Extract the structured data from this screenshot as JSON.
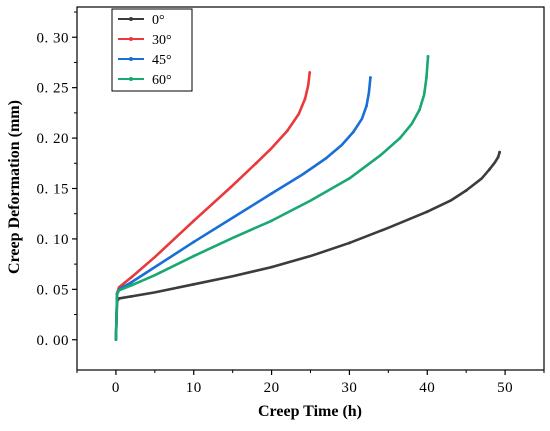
{
  "chart_data": {
    "type": "line",
    "title": "",
    "xlabel": "Creep Time (h)",
    "ylabel": "Creep Deformation (mm)",
    "xlim": [
      -5,
      55
    ],
    "ylim": [
      -0.03,
      0.33
    ],
    "x_ticks": [
      "0",
      "10",
      "20",
      "30",
      "40",
      "50"
    ],
    "y_ticks": [
      "0. 00",
      "0. 05",
      "0. 10",
      "0. 15",
      "0. 20",
      "0. 25",
      "0. 30"
    ],
    "grid": false,
    "legend_position": "top-left",
    "series": [
      {
        "name": "0°",
        "color": "#3c3c3c",
        "points": [
          [
            0,
            0.0
          ],
          [
            0.15,
            0.038
          ],
          [
            0.4,
            0.041
          ],
          [
            2,
            0.043
          ],
          [
            5,
            0.047
          ],
          [
            10,
            0.055
          ],
          [
            15,
            0.063
          ],
          [
            20,
            0.072
          ],
          [
            25,
            0.083
          ],
          [
            30,
            0.096
          ],
          [
            35,
            0.111
          ],
          [
            40,
            0.127
          ],
          [
            43,
            0.138
          ],
          [
            45,
            0.148
          ],
          [
            47,
            0.16
          ],
          [
            48,
            0.169
          ],
          [
            48.7,
            0.176
          ],
          [
            49.1,
            0.181
          ],
          [
            49.3,
            0.186
          ]
        ]
      },
      {
        "name": "30°",
        "color": "#e8393c",
        "points": [
          [
            0,
            0.0
          ],
          [
            0.15,
            0.046
          ],
          [
            0.4,
            0.052
          ],
          [
            2,
            0.062
          ],
          [
            5,
            0.082
          ],
          [
            10,
            0.118
          ],
          [
            15,
            0.153
          ],
          [
            18,
            0.175
          ],
          [
            20,
            0.19
          ],
          [
            22,
            0.207
          ],
          [
            23.5,
            0.224
          ],
          [
            24.3,
            0.239
          ],
          [
            24.7,
            0.252
          ],
          [
            24.9,
            0.265
          ]
        ]
      },
      {
        "name": "45°",
        "color": "#1a6fd6",
        "points": [
          [
            0,
            0.0
          ],
          [
            0.15,
            0.045
          ],
          [
            0.4,
            0.05
          ],
          [
            2,
            0.057
          ],
          [
            5,
            0.072
          ],
          [
            10,
            0.097
          ],
          [
            15,
            0.121
          ],
          [
            20,
            0.145
          ],
          [
            24,
            0.164
          ],
          [
            27,
            0.18
          ],
          [
            29,
            0.193
          ],
          [
            30.5,
            0.206
          ],
          [
            31.6,
            0.219
          ],
          [
            32.2,
            0.232
          ],
          [
            32.5,
            0.245
          ],
          [
            32.7,
            0.26
          ]
        ]
      },
      {
        "name": "60°",
        "color": "#18a870",
        "points": [
          [
            0,
            0.0
          ],
          [
            0.15,
            0.045
          ],
          [
            0.4,
            0.049
          ],
          [
            2,
            0.054
          ],
          [
            5,
            0.064
          ],
          [
            10,
            0.083
          ],
          [
            15,
            0.101
          ],
          [
            20,
            0.118
          ],
          [
            25,
            0.138
          ],
          [
            30,
            0.16
          ],
          [
            34,
            0.183
          ],
          [
            36.5,
            0.2
          ],
          [
            38,
            0.214
          ],
          [
            39,
            0.228
          ],
          [
            39.6,
            0.243
          ],
          [
            39.9,
            0.26
          ],
          [
            40.1,
            0.281
          ]
        ]
      }
    ]
  }
}
